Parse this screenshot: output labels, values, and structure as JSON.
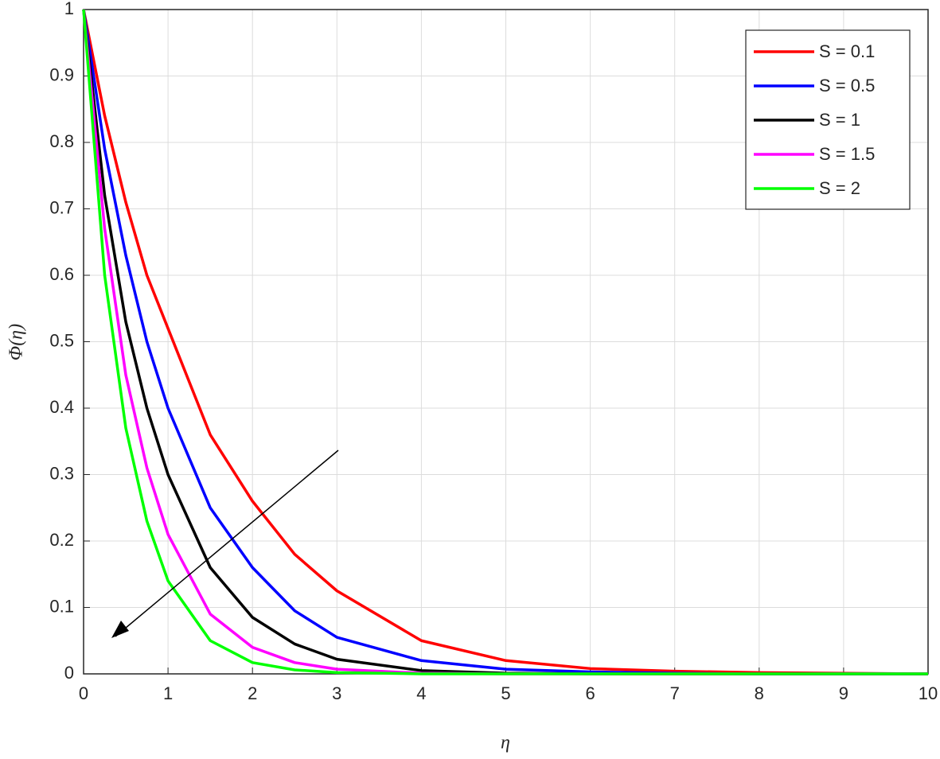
{
  "chart_data": {
    "type": "line",
    "x_label": "η",
    "y_label": "Φ(η)",
    "x": [
      0,
      0.25,
      0.5,
      0.75,
      1,
      1.5,
      2,
      2.5,
      3,
      4,
      5,
      6,
      7,
      8,
      10
    ],
    "series": [
      {
        "name": "S = 0.1",
        "color": "#ff0000",
        "values": [
          1,
          0.84,
          0.71,
          0.6,
          0.52,
          0.36,
          0.26,
          0.18,
          0.125,
          0.05,
          0.02,
          0.008,
          0.004,
          0.002,
          0
        ]
      },
      {
        "name": "S = 0.5",
        "color": "#0000ff",
        "values": [
          1,
          0.79,
          0.63,
          0.5,
          0.4,
          0.25,
          0.16,
          0.095,
          0.055,
          0.02,
          0.007,
          0.003,
          0.001,
          0,
          0
        ]
      },
      {
        "name": "S = 1",
        "color": "#000000",
        "values": [
          1,
          0.72,
          0.53,
          0.4,
          0.3,
          0.16,
          0.085,
          0.045,
          0.022,
          0.005,
          0.001,
          0,
          0,
          0,
          0
        ]
      },
      {
        "name": "S = 1.5",
        "color": "#ff00ff",
        "values": [
          1,
          0.67,
          0.45,
          0.31,
          0.21,
          0.09,
          0.04,
          0.017,
          0.007,
          0.001,
          0,
          0,
          0,
          0,
          0
        ]
      },
      {
        "name": "S = 2",
        "color": "#00ff00",
        "values": [
          1,
          0.6,
          0.37,
          0.23,
          0.14,
          0.05,
          0.017,
          0.006,
          0.002,
          0,
          0,
          0,
          0,
          0,
          0
        ]
      }
    ],
    "xlim": [
      0,
      10
    ],
    "xticks": [
      0,
      1,
      2,
      3,
      4,
      5,
      6,
      7,
      8,
      9,
      10
    ],
    "ylim": [
      0,
      1
    ],
    "yticks": [
      0,
      0.1,
      0.2,
      0.3,
      0.4,
      0.5,
      0.6,
      0.7,
      0.8,
      0.9,
      1
    ],
    "grid": true,
    "legend": "upper right"
  }
}
